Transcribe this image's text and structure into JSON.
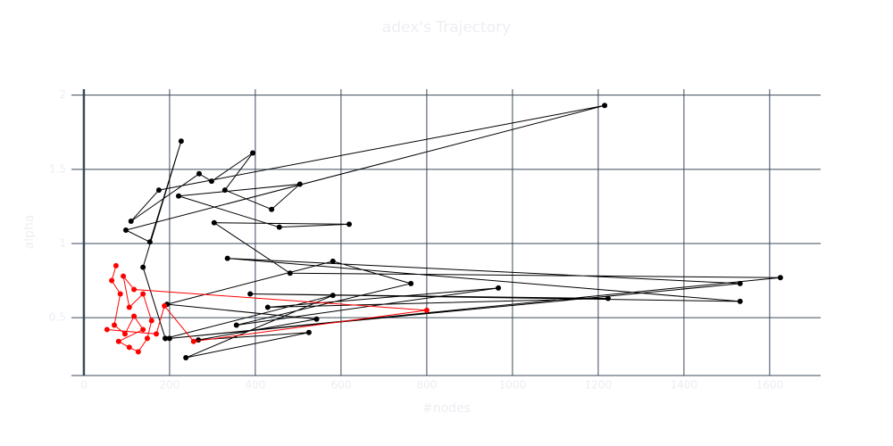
{
  "chart_data": {
    "type": "line",
    "title": "adex's Trajectory",
    "x_label": "#nodes",
    "y_label": "alpha",
    "xlim": [
      -29,
      1719
    ],
    "ylim": [
      0.11,
      2.04
    ],
    "xticks": [
      0,
      200,
      400,
      600,
      800,
      1000,
      1200,
      1400,
      1600
    ],
    "yticks": [
      0.5,
      1,
      1.5,
      2
    ],
    "grid": true,
    "series": [
      {
        "name": "black",
        "color": "#000000",
        "x": [
          190,
          138,
          227,
          154,
          98,
          1215,
          175,
          110,
          269,
          298,
          394,
          329,
          438,
          504,
          221,
          456,
          619,
          304,
          481,
          1625,
          200,
          1531,
          335,
          1531,
          388,
          1223,
          429,
          967,
          356,
          763,
          581,
          194,
          543,
          267,
          525,
          238,
          581,
          190
        ],
        "y": [
          0.36,
          0.84,
          1.69,
          1.01,
          1.09,
          1.93,
          1.36,
          1.15,
          1.47,
          1.42,
          1.61,
          1.36,
          1.23,
          1.4,
          1.32,
          1.11,
          1.13,
          1.14,
          0.8,
          0.77,
          0.36,
          0.73,
          0.9,
          0.61,
          0.66,
          0.63,
          0.57,
          0.7,
          0.45,
          0.73,
          0.88,
          0.59,
          0.49,
          0.35,
          0.4,
          0.23,
          0.65,
          0.36
        ]
      },
      {
        "name": "red",
        "color": "#ff0000",
        "x": [
          75,
          65,
          85,
          71,
          96,
          117,
          138,
          81,
          106,
          127,
          148,
          158,
          138,
          106,
          92,
          117,
          800,
          256,
          188,
          169,
          54
        ],
        "y": [
          0.85,
          0.75,
          0.66,
          0.45,
          0.39,
          0.51,
          0.42,
          0.34,
          0.3,
          0.27,
          0.36,
          0.48,
          0.66,
          0.57,
          0.78,
          0.69,
          0.55,
          0.34,
          0.58,
          0.39,
          0.42
        ]
      }
    ]
  }
}
